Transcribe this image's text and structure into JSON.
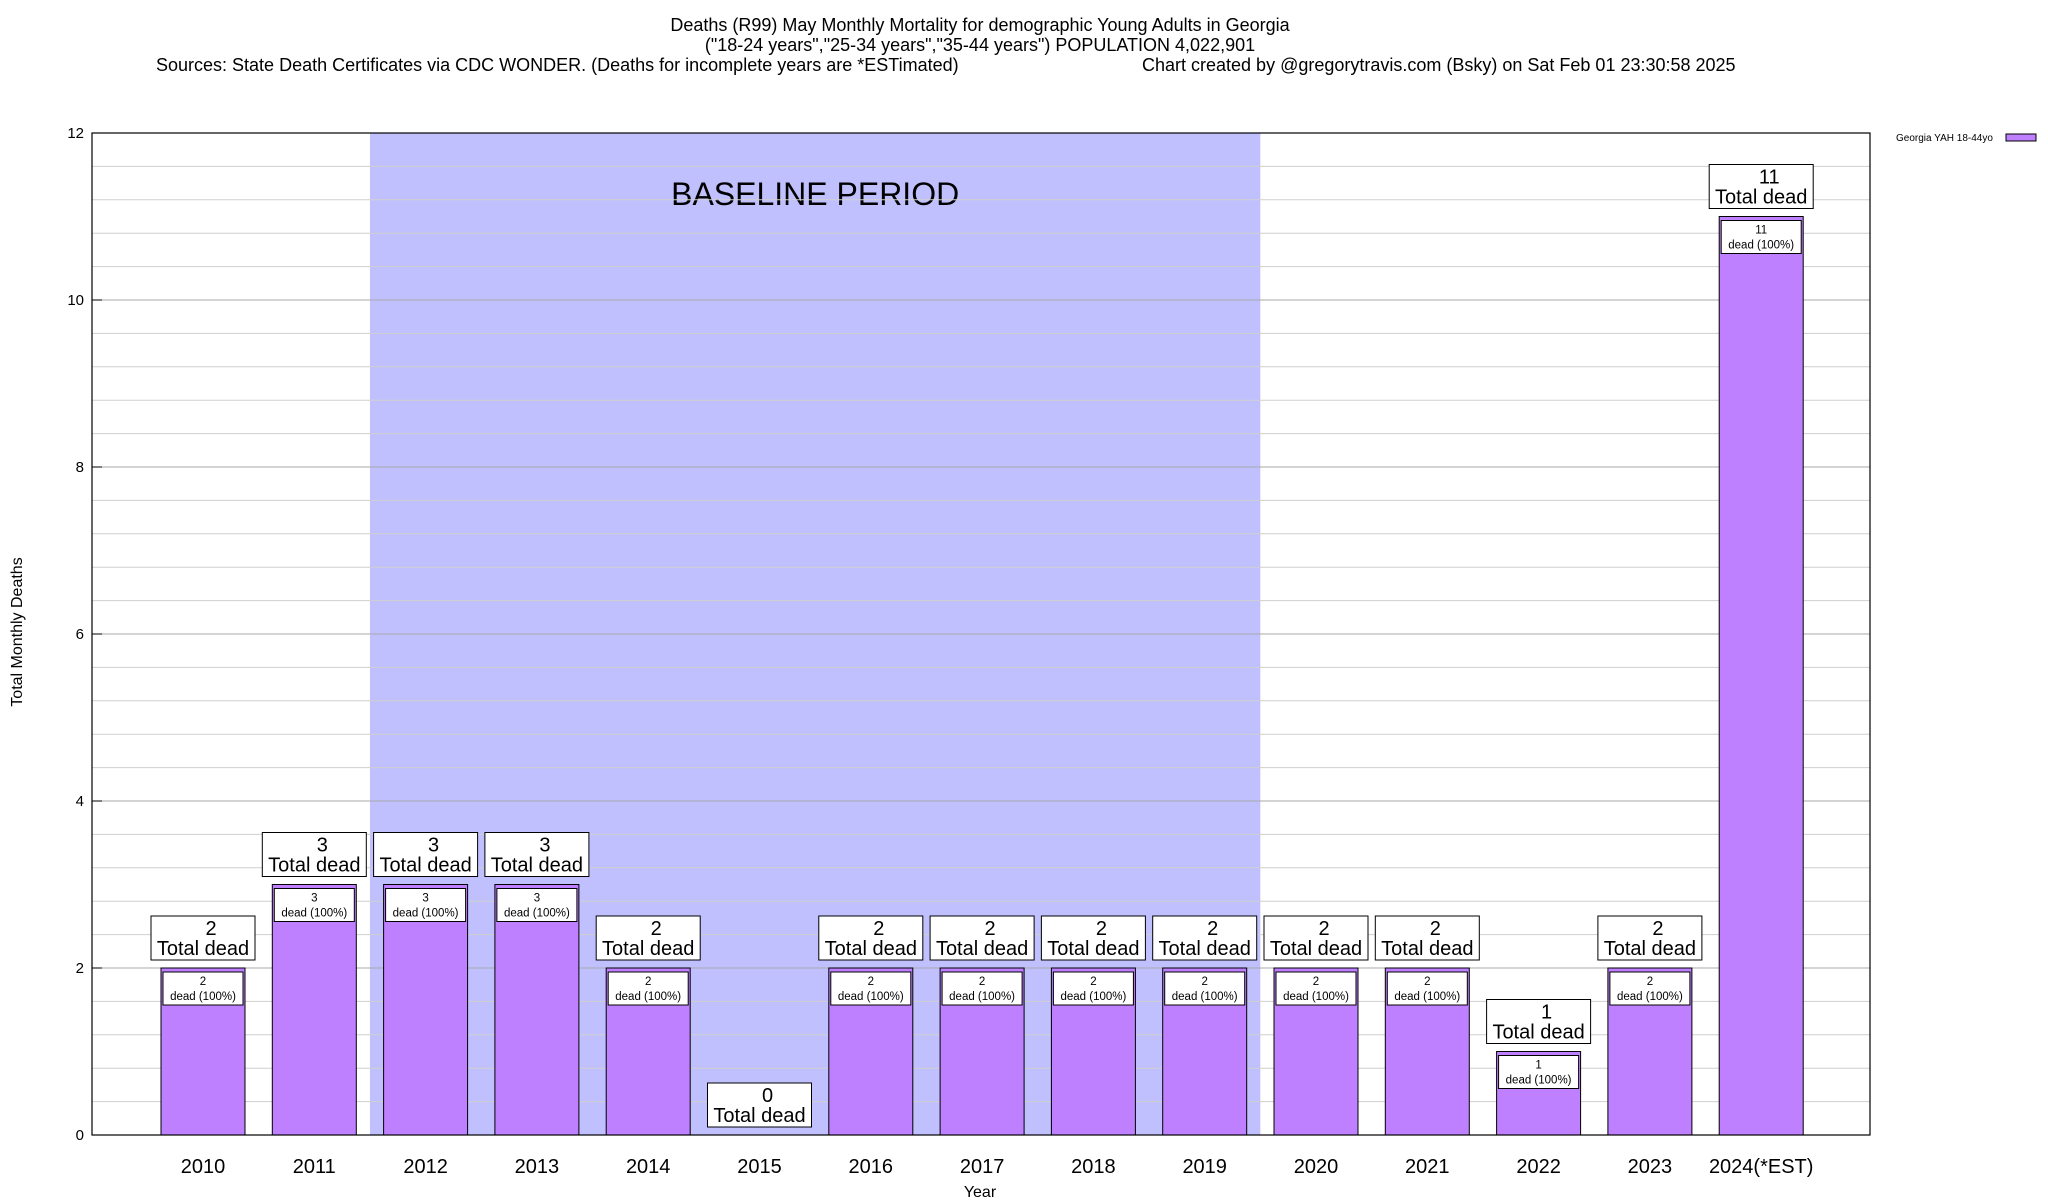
{
  "chart_data": {
    "type": "bar",
    "title_lines": [
      "Deaths (R99) May Monthly Mortality for demographic Young Adults in Georgia",
      "(\"18-24 years\",\"25-34 years\",\"35-44 years\") POPULATION 4,022,901",
      "Sources: State Death Certificates via CDC WONDER. (Deaths for incomplete years are *ESTimated)"
    ],
    "credit": "Chart created by @gregorytravis.com (Bsky) on Sat Feb 01 23:30:58 2025",
    "xlabel": "Year",
    "ylabel": "Total Monthly Deaths",
    "ylim": [
      0,
      12
    ],
    "y_ticks": [
      0,
      2,
      4,
      6,
      8,
      10,
      12
    ],
    "y_minor_step": 0.4,
    "grid": true,
    "legend": {
      "position": "top-right",
      "entries": [
        {
          "name": "Georgia YAH 18-44yo",
          "color": "#bf80ff"
        }
      ]
    },
    "categories": [
      "2010",
      "2011",
      "2012",
      "2013",
      "2014",
      "2015",
      "2016",
      "2017",
      "2018",
      "2019",
      "2020",
      "2021",
      "2022",
      "2023",
      "2024(*EST)"
    ],
    "series": [
      {
        "name": "Georgia YAH 18-44yo",
        "color": "#bf80ff",
        "values": [
          2,
          3,
          3,
          3,
          2,
          0,
          2,
          2,
          2,
          2,
          2,
          2,
          1,
          2,
          11
        ]
      }
    ],
    "total_label_text": "Total dead",
    "inner_label_text": "dead (100%)",
    "baseline": {
      "label": "BASELINE PERIOD",
      "from": "2012",
      "to": "2019",
      "color": "#c0c0ff"
    }
  }
}
